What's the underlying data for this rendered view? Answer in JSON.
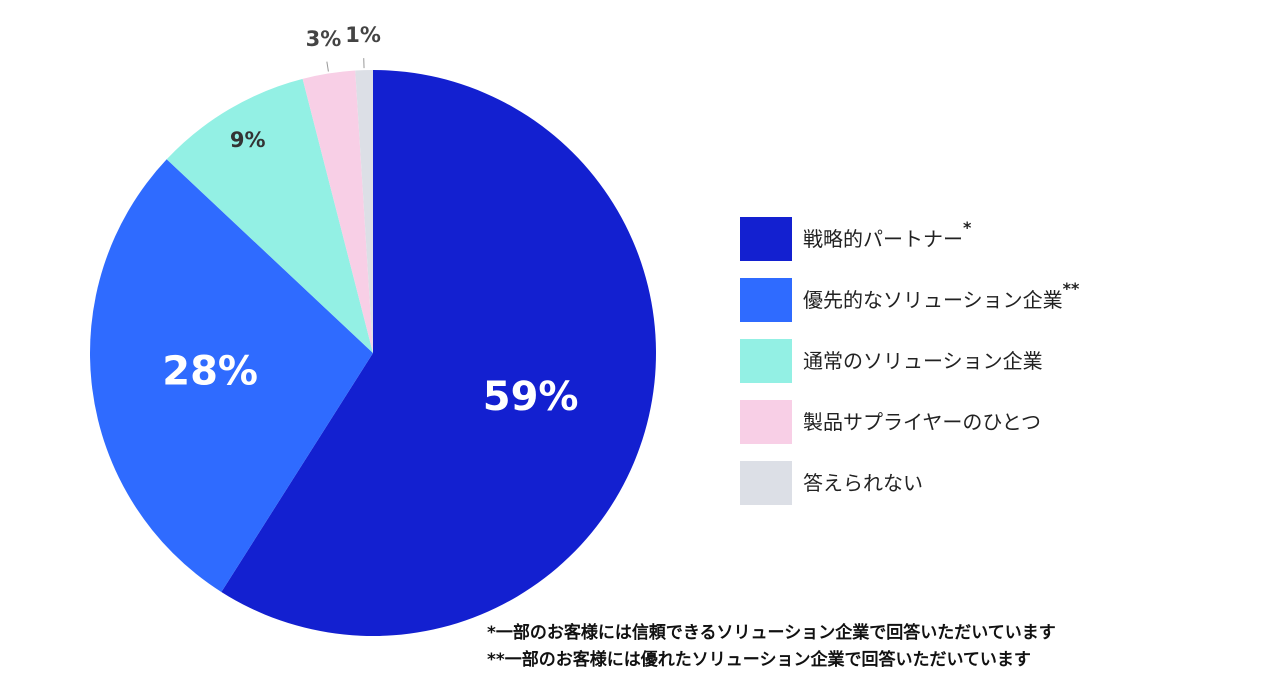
{
  "chart_data": {
    "type": "pie",
    "categories": [
      "戦略的パートナー",
      "優先的なソリューション企業",
      "通常のソリューション企業",
      "製品サプライヤーのひとつ",
      "答えられない"
    ],
    "category_marks": [
      "*",
      "**",
      null,
      null,
      null
    ],
    "values": [
      59,
      28,
      9,
      3,
      1
    ],
    "value_labels": [
      "59%",
      "28%",
      "9%",
      "3%",
      "1%"
    ],
    "colors": [
      "#1320d0",
      "#2f6bff",
      "#93f0e4",
      "#f8cfe6",
      "#dcdfe6"
    ],
    "value_label_colors": [
      "#ffffff",
      "#ffffff",
      "#333333",
      "#444444",
      "#444444"
    ],
    "start_angle": 0,
    "direction": "clockwise",
    "legend": "right",
    "footnotes": [
      "*一部のお客様には信頼できるソリューション企業で回答いただいています",
      "**一部のお客様には優れたソリューション企業で回答いただいています"
    ]
  }
}
